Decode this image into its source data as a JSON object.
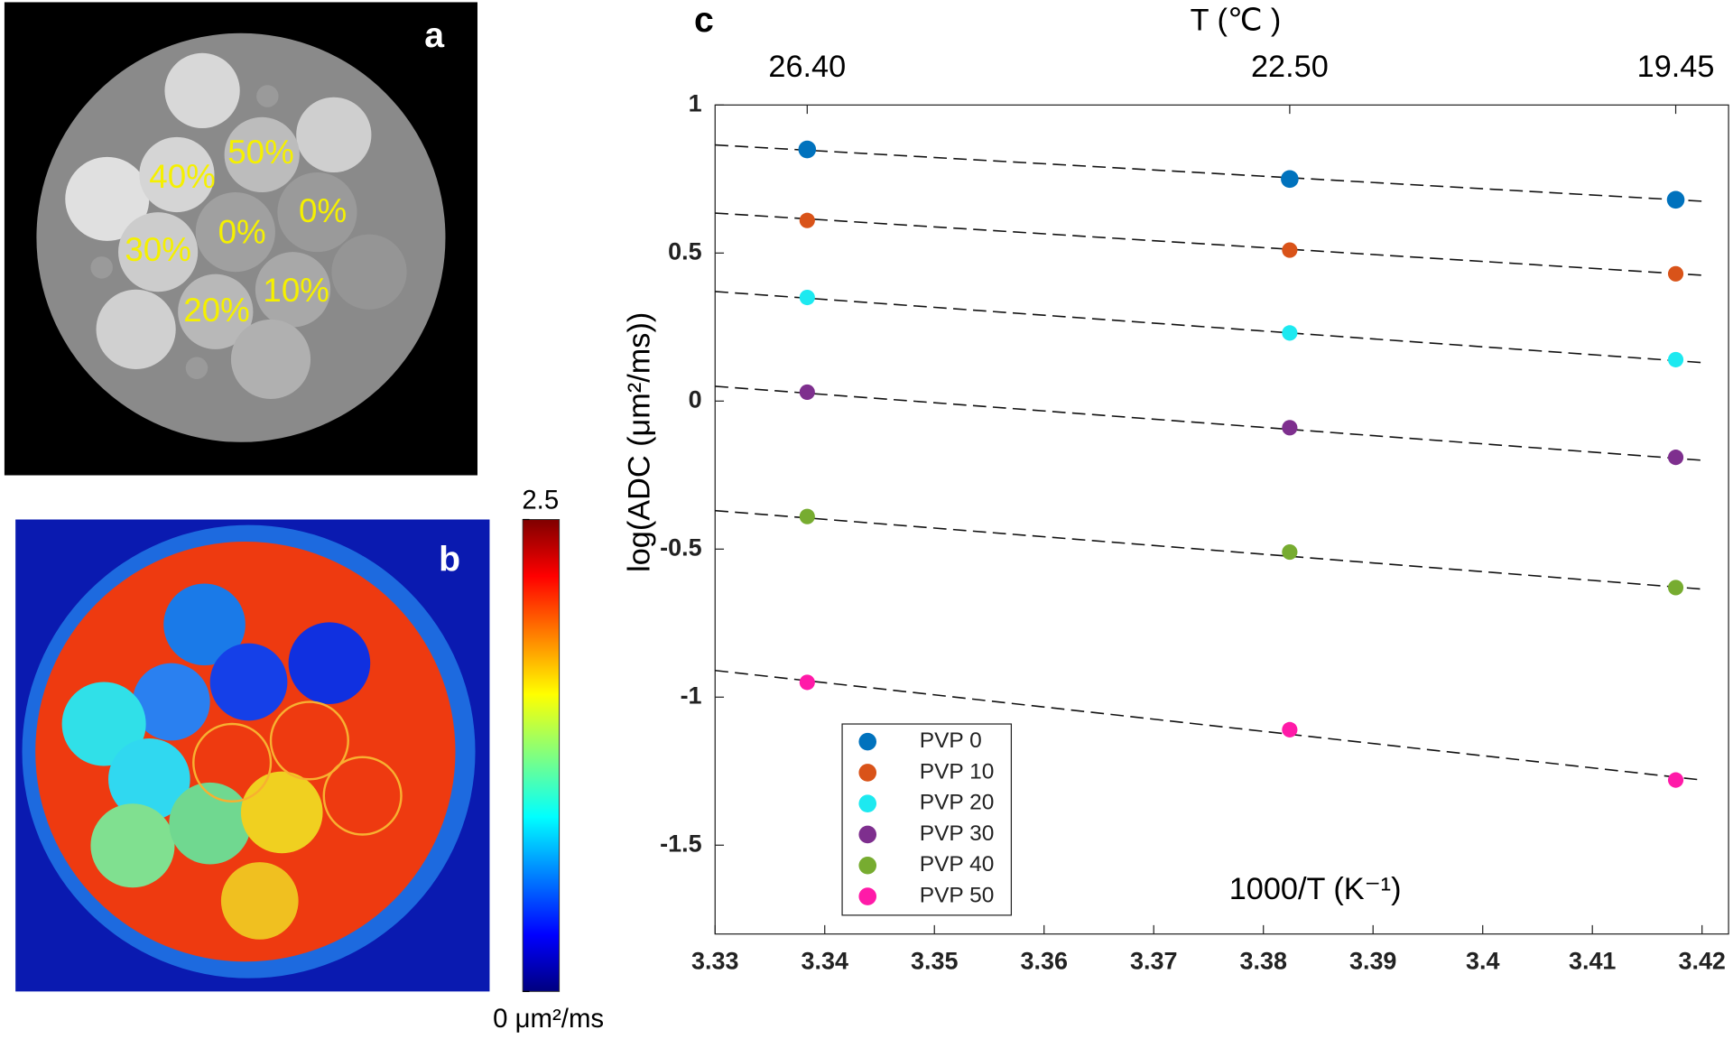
{
  "panels": {
    "a": {
      "label": "a",
      "annotations": [
        "50%",
        "40%",
        "0%",
        "0%",
        "30%",
        "10%",
        "20%"
      ]
    },
    "b": {
      "label": "b",
      "colorbar": {
        "lim": [
          0,
          2.5
        ],
        "ticks": [
          {
            "value": 0,
            "label": "0 μm²/ms"
          },
          2.5
        ]
      }
    }
  },
  "chart_data": {
    "type": "scatter",
    "panel_label": "c",
    "xlabel": "1000/T (K⁻¹)",
    "ylabel": "log(ADC (μm²/ms))",
    "x2label": "T (℃ )",
    "x": [
      3.3384,
      3.3824,
      3.4176
    ],
    "xlim": [
      3.33,
      3.42
    ],
    "ylim": [
      -1.8,
      1
    ],
    "xticks": [
      3.33,
      3.34,
      3.35,
      3.36,
      3.37,
      3.38,
      3.39,
      3.4,
      3.41,
      3.42
    ],
    "yticks": [
      -1.5,
      -1,
      -0.5,
      0,
      0.5,
      1
    ],
    "x2ticks": [
      {
        "value": 3.3384,
        "label": "26.40"
      },
      {
        "value": 3.3824,
        "label": "22.50"
      },
      {
        "value": 3.4176,
        "label": "19.45"
      }
    ],
    "fit_x": [
      3.33,
      3.42
    ],
    "legend": "lower-left",
    "series": [
      {
        "name": "PVP 0",
        "color": "#0072bd",
        "values": [
          0.85,
          0.75,
          0.68
        ],
        "fit": [
          0.865,
          0.675
        ]
      },
      {
        "name": "PVP 10",
        "color": "#d95319",
        "values": [
          0.61,
          0.51,
          0.43
        ],
        "fit": [
          0.635,
          0.425
        ]
      },
      {
        "name": "PVP 20",
        "color": "#1de9f0",
        "values": [
          0.35,
          0.23,
          0.14
        ],
        "fit": [
          0.37,
          0.13
        ]
      },
      {
        "name": "PVP 30",
        "color": "#7e2f8e",
        "values": [
          0.03,
          -0.09,
          -0.19
        ],
        "fit": [
          0.05,
          -0.2
        ]
      },
      {
        "name": "PVP 40",
        "color": "#77ac30",
        "values": [
          -0.39,
          -0.51,
          -0.63
        ],
        "fit": [
          -0.37,
          -0.635
        ]
      },
      {
        "name": "PVP 50",
        "color": "#ff1aa8",
        "values": [
          -0.95,
          -1.11,
          -1.28
        ],
        "fit": [
          -0.91,
          -1.28
        ]
      }
    ]
  }
}
